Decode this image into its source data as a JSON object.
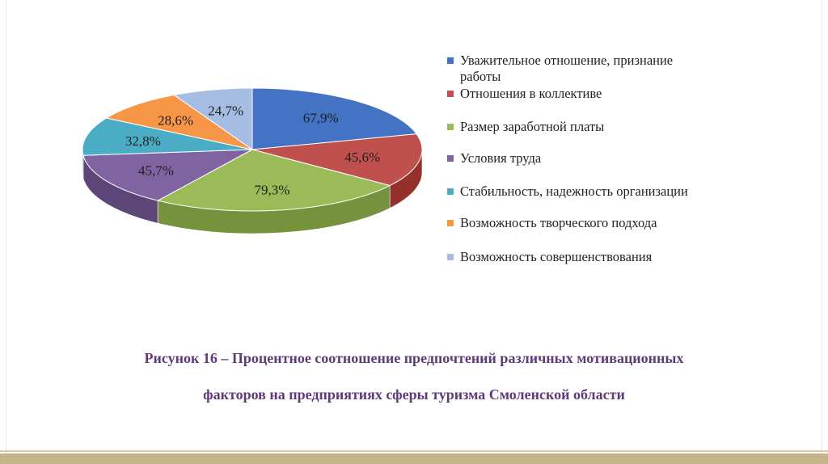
{
  "caption": {
    "line1": "Рисунок 16 – Процентное соотношение предпочтений различных мотивационных",
    "line2": "факторов на предприятиях сферы туризма Смоленской области"
  },
  "chart_data": {
    "type": "pie",
    "style": "3d",
    "legend_position": "right",
    "categories": [
      "Уважительное отношение, признание работы",
      "Отношения в коллективе",
      "Размер заработной платы",
      "Условия труда",
      "Стабильность, надежность организации",
      "Возможность творческого подхода",
      "Возможность совершенствования"
    ],
    "values": [
      67.9,
      45.6,
      79.3,
      45.7,
      32.8,
      28.6,
      24.7
    ],
    "labels": [
      "67,9%",
      "45,6%",
      "79,3%",
      "45,7%",
      "32,8%",
      "28,6%",
      "24,7%"
    ],
    "colors": [
      "#4472c4",
      "#c0504d",
      "#9bbb59",
      "#8064a2",
      "#4bacc6",
      "#f79646",
      "#a6bde3"
    ],
    "side_colors": [
      "#2f5597",
      "#96302d",
      "#76923c",
      "#5c4677",
      "#2e8aa3",
      "#c96e1d",
      "#7f9bc9"
    ]
  }
}
